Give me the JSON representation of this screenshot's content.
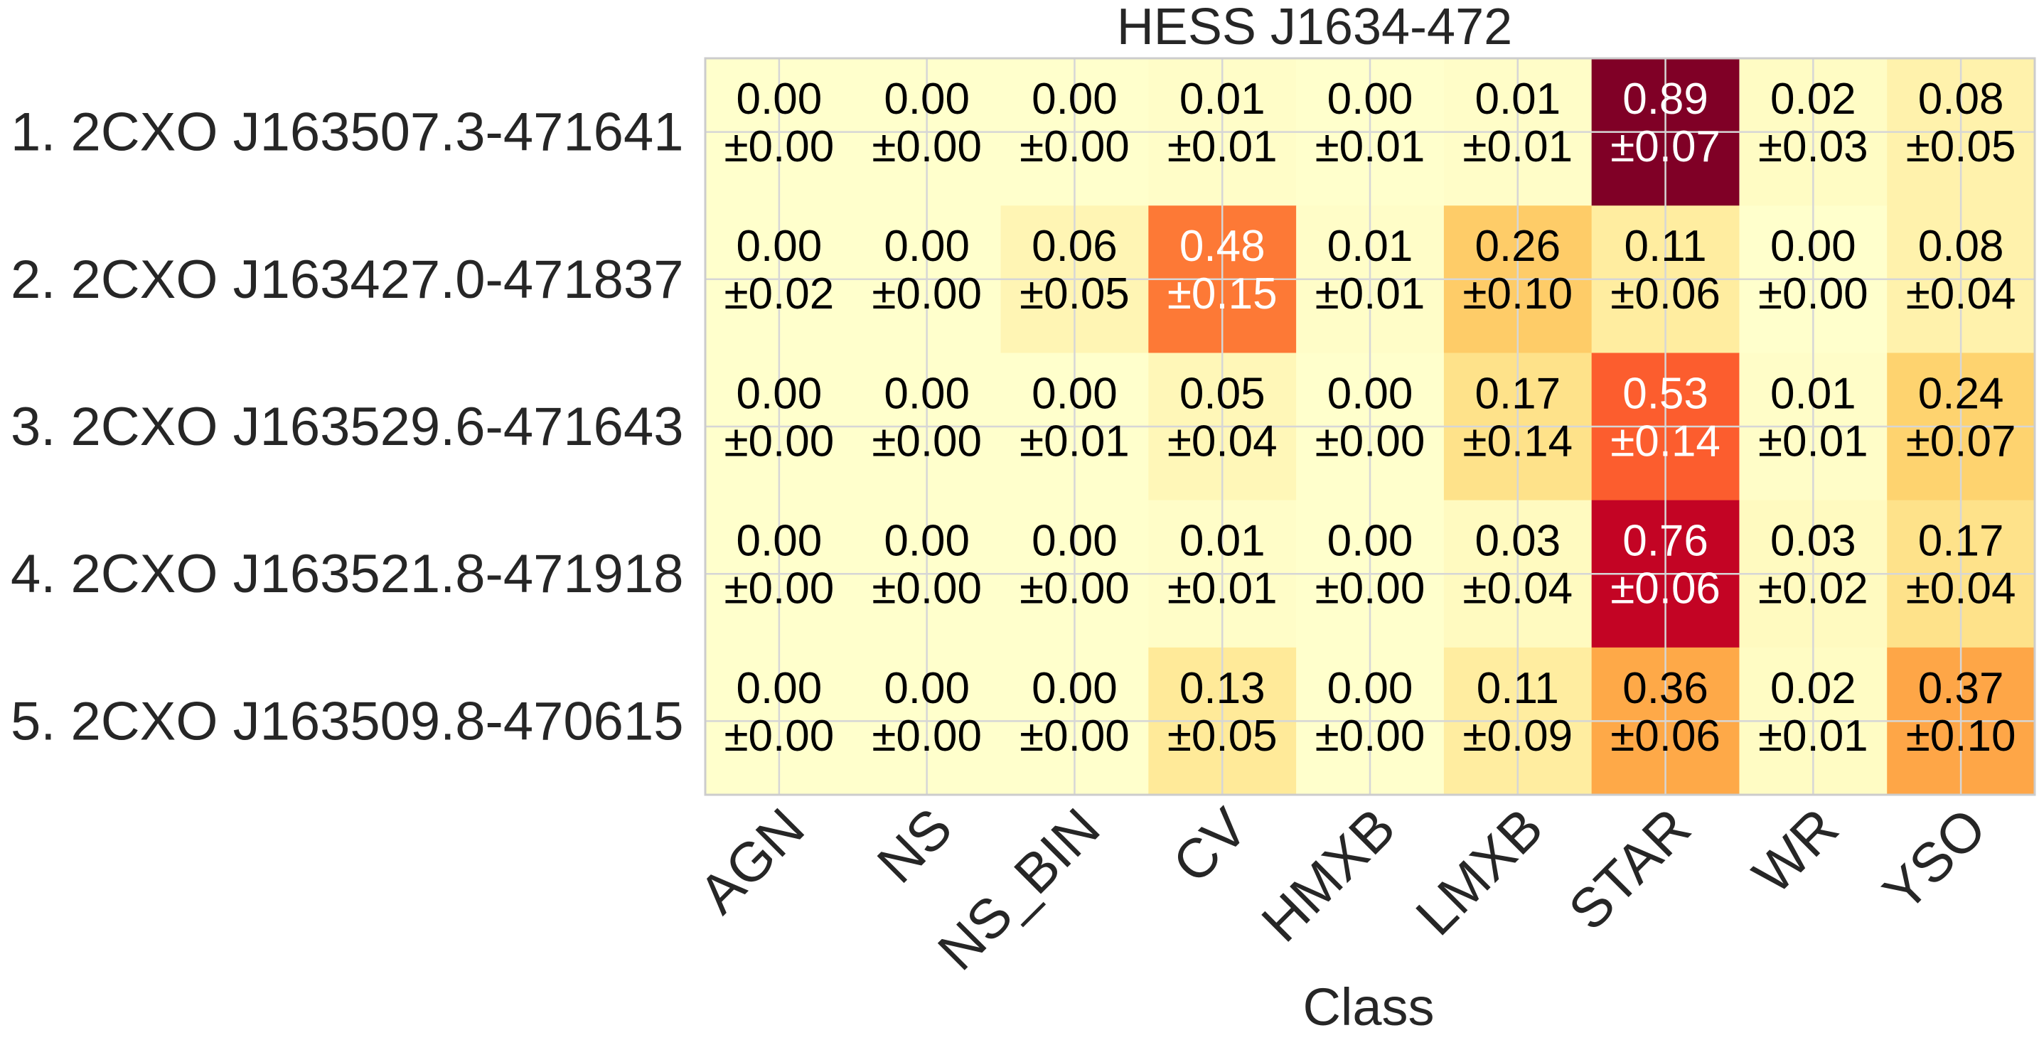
{
  "chart_data": {
    "type": "heatmap",
    "title": "HESS J1634-472",
    "xlabel": "Class",
    "ylabel": "",
    "grid": true,
    "colormap": "YlOrRd",
    "color_range": [
      0,
      0.89
    ],
    "columns": [
      "AGN",
      "NS",
      "NS_BIN",
      "CV",
      "HMXB",
      "LMXB",
      "STAR",
      "WR",
      "YSO"
    ],
    "rows": [
      "1.  2CXO J163507.3-471641",
      "2.  2CXO J163427.0-471837",
      "3.  2CXO J163529.6-471643",
      "4.  2CXO J163521.8-471918",
      "5.  2CXO J163509.8-470615"
    ],
    "values": [
      [
        0.0,
        0.0,
        0.0,
        0.01,
        0.0,
        0.01,
        0.89,
        0.02,
        0.08
      ],
      [
        0.0,
        0.0,
        0.06,
        0.48,
        0.01,
        0.26,
        0.11,
        0.0,
        0.08
      ],
      [
        0.0,
        0.0,
        0.0,
        0.05,
        0.0,
        0.17,
        0.53,
        0.01,
        0.24
      ],
      [
        0.0,
        0.0,
        0.0,
        0.01,
        0.0,
        0.03,
        0.76,
        0.03,
        0.17
      ],
      [
        0.0,
        0.0,
        0.0,
        0.13,
        0.0,
        0.11,
        0.36,
        0.02,
        0.37
      ]
    ],
    "errors": [
      [
        0.0,
        0.0,
        0.0,
        0.01,
        0.01,
        0.01,
        0.07,
        0.03,
        0.05
      ],
      [
        0.02,
        0.0,
        0.05,
        0.15,
        0.01,
        0.1,
        0.06,
        0.0,
        0.04
      ],
      [
        0.0,
        0.0,
        0.01,
        0.04,
        0.0,
        0.14,
        0.14,
        0.01,
        0.07
      ],
      [
        0.0,
        0.0,
        0.0,
        0.01,
        0.0,
        0.04,
        0.06,
        0.02,
        0.04
      ],
      [
        0.0,
        0.0,
        0.0,
        0.05,
        0.0,
        0.09,
        0.06,
        0.01,
        0.1
      ]
    ]
  }
}
